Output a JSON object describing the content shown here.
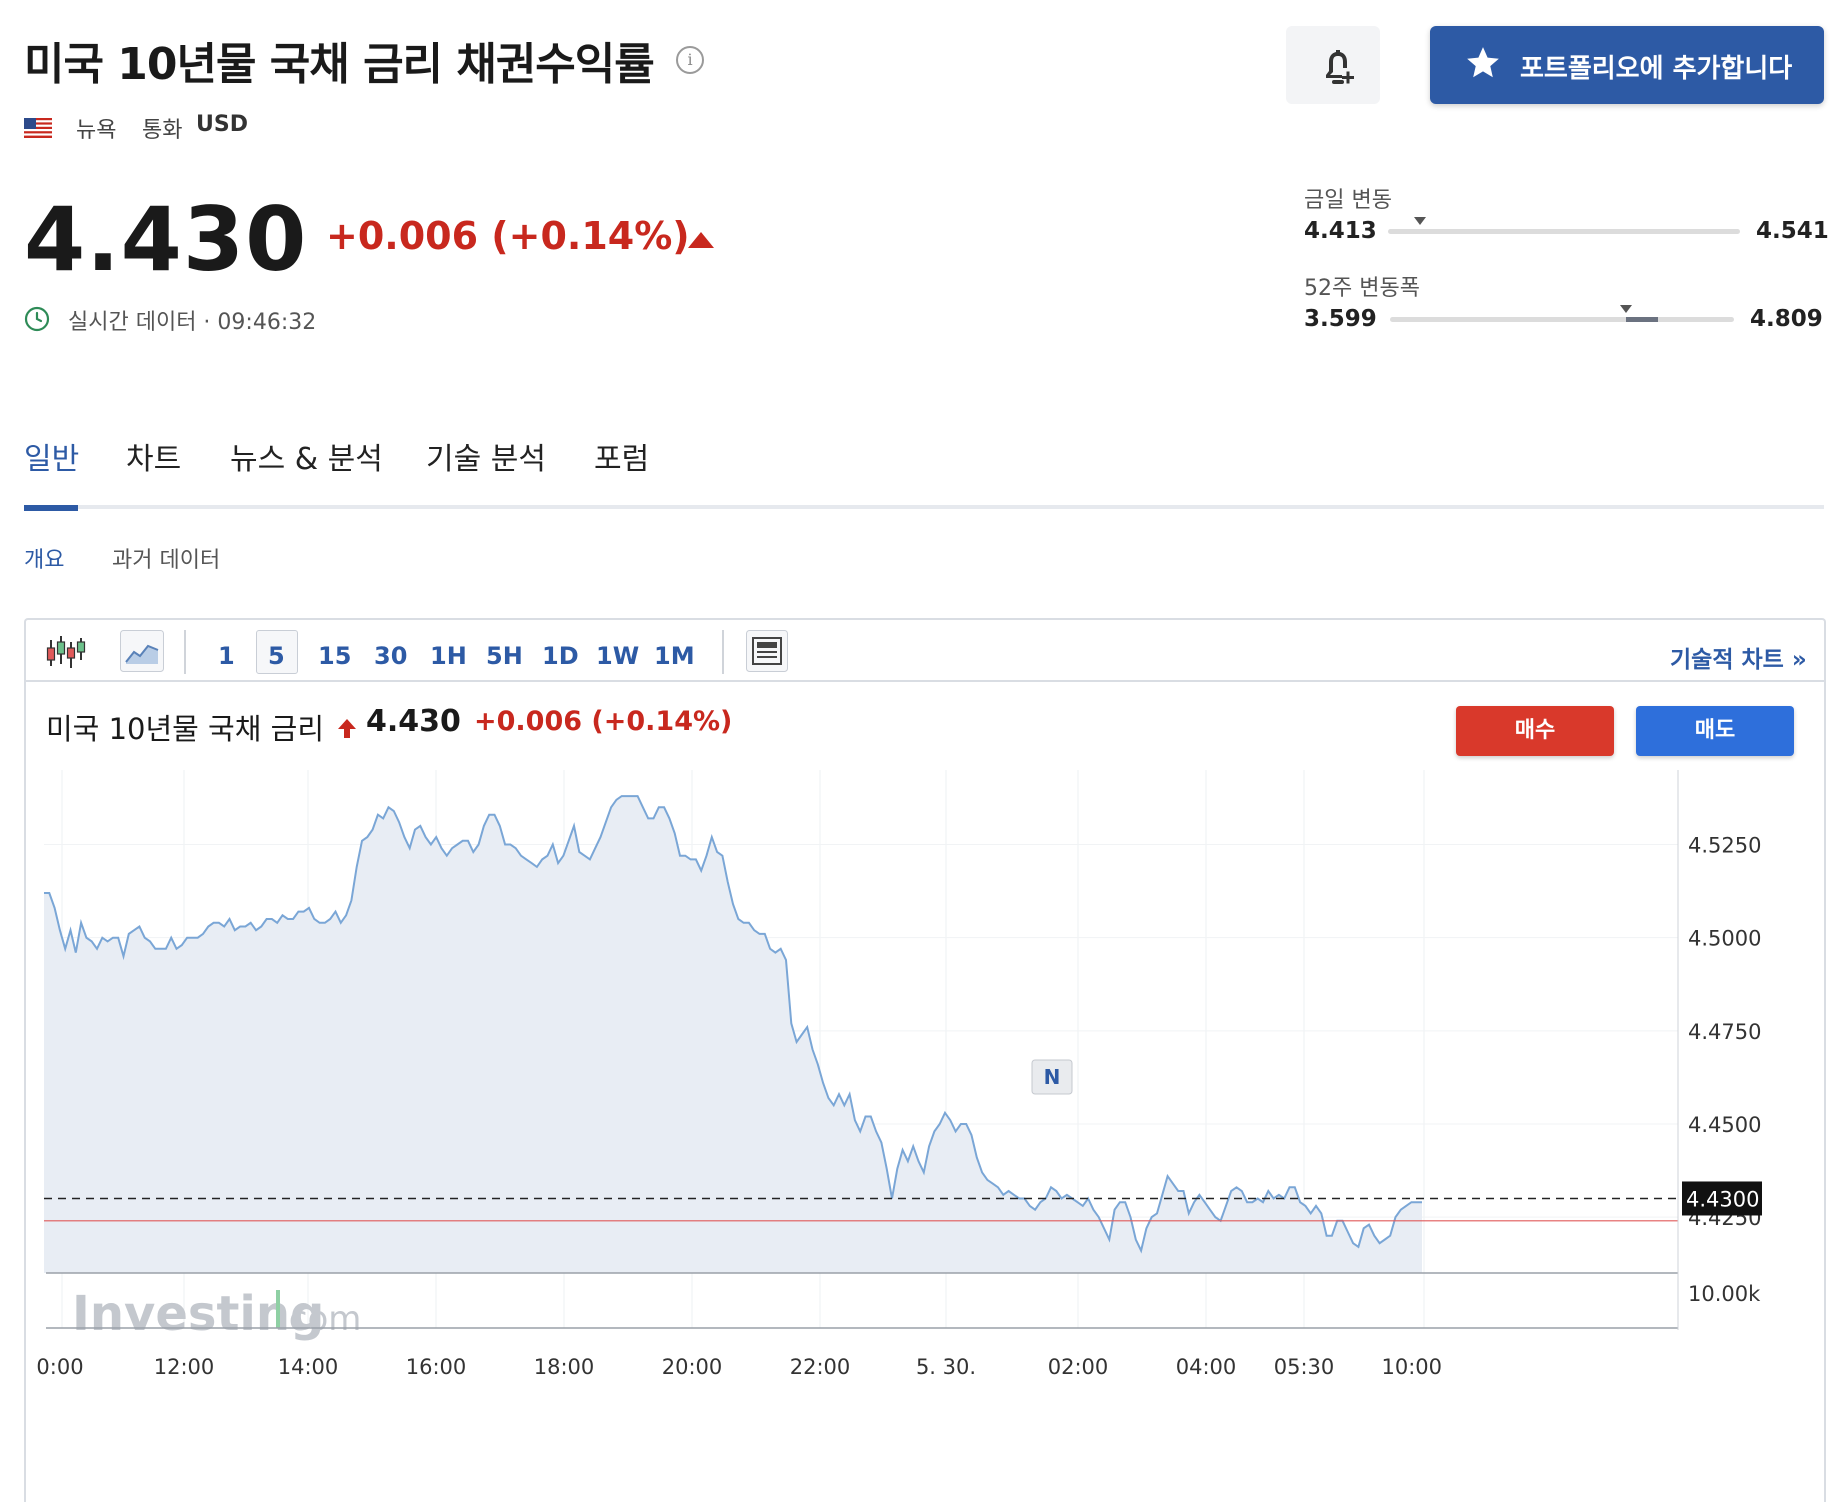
{
  "header": {
    "title": "미국 10년물 국채 금리 채권수익률",
    "exchange": "뉴욕",
    "currency_label": "통화",
    "currency_value": "USD",
    "portfolio_button": "포트폴리오에 추가합니다"
  },
  "quote": {
    "price": "4.430",
    "change": "+0.006 (+0.14%)",
    "realtime": "실시간 데이터 · 09:46:32"
  },
  "ranges": {
    "day": {
      "label": "금일 변동",
      "low": "4.413",
      "high": "4.541",
      "position": 0.09
    },
    "week52": {
      "label": "52주 변동폭",
      "low": "3.599",
      "high": "4.809",
      "position": 0.686
    }
  },
  "tabs": [
    "일반",
    "차트",
    "뉴스 & 분석",
    "기술 분석",
    "포럼"
  ],
  "subtabs": [
    "개요",
    "과거 데이터"
  ],
  "toolbar": {
    "timeframes": [
      "1",
      "5",
      "15",
      "30",
      "1H",
      "5H",
      "1D",
      "1W",
      "1M"
    ],
    "selected": "5",
    "tech_chart_link": "기술적 차트 »"
  },
  "chart": {
    "name": "미국 10년물 국채 금리",
    "price": "4.430",
    "change": "+0.006 (+0.14%)",
    "buy_label": "매수",
    "sell_label": "매도"
  },
  "chart_data": {
    "type": "area",
    "x_labels": [
      "0:00",
      "12:00",
      "14:00",
      "16:00",
      "18:00",
      "20:00",
      "22:00",
      "5. 30.",
      "02:00",
      "04:00",
      "05:30",
      "10:00"
    ],
    "y_ticks": [
      4.525,
      4.5,
      4.475,
      4.45,
      4.425
    ],
    "y_tick_labels": [
      "4.5250",
      "4.5000",
      "4.4750",
      "4.4500",
      "4.4250"
    ],
    "ylim": [
      4.41,
      4.545
    ],
    "current_value": 4.43,
    "current_label": "4.4300",
    "previous_close": 4.424,
    "volume_label": "10.00k",
    "news_marker": "N",
    "watermark": "Investing",
    "watermark_suffix": ".com",
    "colors": {
      "line": "#7aa6d6",
      "fill": "#e8edf4",
      "prev_close": "#e05a5a",
      "volume": "#8fd0a4"
    },
    "values": [
      4.512,
      4.512,
      4.508,
      4.502,
      4.497,
      4.502,
      4.496,
      4.504,
      4.5,
      4.499,
      4.497,
      4.5,
      4.499,
      4.5,
      4.5,
      4.495,
      4.501,
      4.502,
      4.503,
      4.5,
      4.499,
      4.497,
      4.497,
      4.497,
      4.5,
      4.497,
      4.498,
      4.5,
      4.5,
      4.5,
      4.501,
      4.503,
      4.504,
      4.504,
      4.503,
      4.505,
      4.502,
      4.503,
      4.503,
      4.504,
      4.502,
      4.503,
      4.505,
      4.505,
      4.504,
      4.506,
      4.505,
      4.505,
      4.507,
      4.507,
      4.508,
      4.505,
      4.504,
      4.504,
      4.505,
      4.507,
      4.504,
      4.506,
      4.51,
      4.519,
      4.526,
      4.527,
      4.529,
      4.533,
      4.532,
      4.535,
      4.534,
      4.531,
      4.527,
      4.524,
      4.529,
      4.53,
      4.527,
      4.525,
      4.527,
      4.524,
      4.522,
      4.524,
      4.525,
      4.526,
      4.526,
      4.523,
      4.525,
      4.53,
      4.533,
      4.533,
      4.53,
      4.525,
      4.525,
      4.524,
      4.522,
      4.521,
      4.52,
      4.519,
      4.521,
      4.522,
      4.525,
      4.52,
      4.522,
      4.526,
      4.53,
      4.523,
      4.522,
      4.521,
      4.524,
      4.527,
      4.531,
      4.535,
      4.537,
      4.538,
      4.538,
      4.538,
      4.538,
      4.535,
      4.532,
      4.532,
      4.535,
      4.535,
      4.532,
      4.528,
      4.522,
      4.522,
      4.521,
      4.521,
      4.518,
      4.522,
      4.527,
      4.523,
      4.522,
      4.515,
      4.509,
      4.505,
      4.504,
      4.504,
      4.502,
      4.501,
      4.501,
      4.497,
      4.496,
      4.497,
      4.494,
      4.477,
      4.472,
      4.474,
      4.476,
      4.47,
      4.466,
      4.461,
      4.457,
      4.455,
      4.458,
      4.455,
      4.458,
      4.451,
      4.448,
      4.452,
      4.452,
      4.448,
      4.445,
      4.438,
      4.43,
      4.438,
      4.443,
      4.44,
      4.444,
      4.44,
      4.437,
      4.444,
      4.448,
      4.45,
      4.453,
      4.451,
      4.448,
      4.45,
      4.45,
      4.447,
      4.441,
      4.437,
      4.435,
      4.434,
      4.433,
      4.431,
      4.432,
      4.431,
      4.43,
      4.43,
      4.428,
      4.427,
      4.429,
      4.43,
      4.433,
      4.432,
      4.43,
      4.431,
      4.43,
      4.429,
      4.428,
      4.43,
      4.427,
      4.425,
      4.422,
      4.419,
      4.427,
      4.429,
      4.429,
      4.425,
      4.419,
      4.416,
      4.422,
      4.425,
      4.426,
      4.431,
      4.436,
      4.434,
      4.432,
      4.432,
      4.426,
      4.429,
      4.431,
      4.429,
      4.427,
      4.425,
      4.424,
      4.428,
      4.432,
      4.433,
      4.432,
      4.429,
      4.429,
      4.43,
      4.429,
      4.432,
      4.43,
      4.431,
      4.43,
      4.433,
      4.433,
      4.429,
      4.428,
      4.426,
      4.428,
      4.426,
      4.42,
      4.42,
      4.424,
      4.424,
      4.421,
      4.418,
      4.417,
      4.422,
      4.423,
      4.42,
      4.418,
      4.419,
      4.42,
      4.425,
      4.427,
      4.428,
      4.429,
      4.429,
      4.429
    ]
  }
}
